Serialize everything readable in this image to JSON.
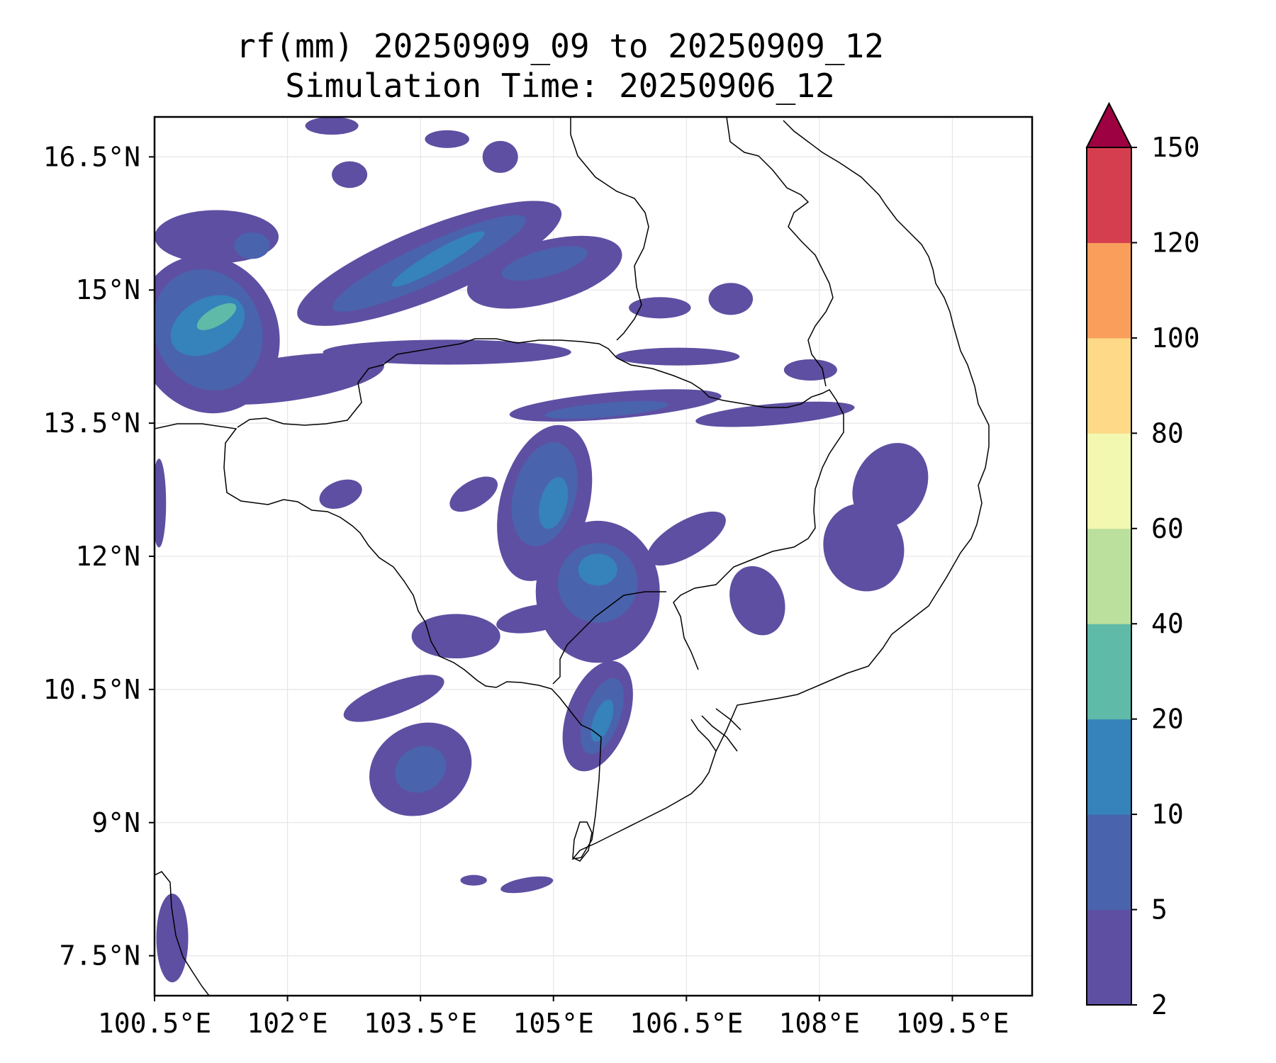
{
  "title": {
    "line1": "rf(mm) 20250909_09 to 20250909_12",
    "line2": "Simulation Time: 20250906_12"
  },
  "map": {
    "lon_labels": [
      "100.5°E",
      "102°E",
      "103.5°E",
      "105°E",
      "106.5°E",
      "108°E",
      "109.5°E"
    ],
    "lat_labels": [
      "16.5°N",
      "15°N",
      "13.5°N",
      "12°N",
      "10.5°N",
      "9°N",
      "7.5°N"
    ],
    "lon_values": [
      100.5,
      102,
      103.5,
      105,
      106.5,
      108,
      109.5
    ],
    "lat_values": [
      16.5,
      15,
      13.5,
      12,
      10.5,
      9,
      7.5
    ],
    "lon_range": [
      100.5,
      110.4
    ],
    "lat_range": [
      7.05,
      16.95
    ],
    "gridlines": true
  },
  "colorbar": {
    "levels": [
      "2",
      "5",
      "10",
      "20",
      "40",
      "60",
      "80",
      "100",
      "120",
      "150"
    ],
    "colors": [
      "#5e4fa2",
      "#4a63ad",
      "#3682ba",
      "#5fbaa8",
      "#bbe09e",
      "#f2f8b0",
      "#fdd988",
      "#f99e5b",
      "#d53e4f"
    ],
    "extend_color": "#9e0142",
    "extend": "max"
  },
  "rain_regions": [
    {
      "level": 0,
      "lon": 101.1,
      "lat": 14.5,
      "rx": 0.8,
      "ry": 0.9,
      "rot": -20
    },
    {
      "level": 1,
      "lon": 101.1,
      "lat": 14.55,
      "rx": 0.6,
      "ry": 0.7,
      "rot": -25
    },
    {
      "level": 2,
      "lon": 101.1,
      "lat": 14.6,
      "rx": 0.45,
      "ry": 0.3,
      "rot": -30
    },
    {
      "level": 3,
      "lon": 101.2,
      "lat": 14.7,
      "rx": 0.25,
      "ry": 0.1,
      "rot": -30
    },
    {
      "level": 0,
      "lon": 101.2,
      "lat": 15.6,
      "rx": 0.7,
      "ry": 0.3,
      "rot": 0
    },
    {
      "level": 1,
      "lon": 101.6,
      "lat": 15.5,
      "rx": 0.2,
      "ry": 0.15,
      "rot": 0
    },
    {
      "level": 0,
      "lon": 102.0,
      "lat": 14.0,
      "rx": 1.1,
      "ry": 0.25,
      "rot": -8
    },
    {
      "level": 0,
      "lon": 103.6,
      "lat": 15.3,
      "rx": 1.6,
      "ry": 0.4,
      "rot": -22
    },
    {
      "level": 1,
      "lon": 103.6,
      "lat": 15.3,
      "rx": 1.2,
      "ry": 0.22,
      "rot": -25
    },
    {
      "level": 2,
      "lon": 103.7,
      "lat": 15.35,
      "rx": 0.6,
      "ry": 0.1,
      "rot": -30
    },
    {
      "level": 0,
      "lon": 104.9,
      "lat": 15.2,
      "rx": 0.9,
      "ry": 0.35,
      "rot": -15
    },
    {
      "level": 1,
      "lon": 104.9,
      "lat": 15.3,
      "rx": 0.5,
      "ry": 0.15,
      "rot": -15
    },
    {
      "level": 0,
      "lon": 102.7,
      "lat": 16.3,
      "rx": 0.2,
      "ry": 0.15,
      "rot": 0
    },
    {
      "level": 0,
      "lon": 102.5,
      "lat": 16.85,
      "rx": 0.3,
      "ry": 0.1,
      "rot": 0
    },
    {
      "level": 0,
      "lon": 103.8,
      "lat": 14.3,
      "rx": 1.4,
      "ry": 0.14,
      "rot": 0
    },
    {
      "level": 0,
      "lon": 105.7,
      "lat": 13.7,
      "rx": 1.2,
      "ry": 0.15,
      "rot": -5
    },
    {
      "level": 1,
      "lon": 105.6,
      "lat": 13.65,
      "rx": 0.7,
      "ry": 0.08,
      "rot": -5
    },
    {
      "level": 0,
      "lon": 107.5,
      "lat": 13.6,
      "rx": 0.9,
      "ry": 0.12,
      "rot": -5
    },
    {
      "level": 0,
      "lon": 106.4,
      "lat": 14.25,
      "rx": 0.7,
      "ry": 0.1,
      "rot": 0
    },
    {
      "level": 0,
      "lon": 104.9,
      "lat": 12.6,
      "rx": 0.5,
      "ry": 0.9,
      "rot": 15
    },
    {
      "level": 1,
      "lon": 104.9,
      "lat": 12.7,
      "rx": 0.35,
      "ry": 0.6,
      "rot": 15
    },
    {
      "level": 2,
      "lon": 105.0,
      "lat": 12.6,
      "rx": 0.15,
      "ry": 0.3,
      "rot": 15
    },
    {
      "level": 0,
      "lon": 105.5,
      "lat": 11.6,
      "rx": 0.7,
      "ry": 0.8,
      "rot": 0
    },
    {
      "level": 1,
      "lon": 105.5,
      "lat": 11.7,
      "rx": 0.45,
      "ry": 0.45,
      "rot": 0
    },
    {
      "level": 2,
      "lon": 105.5,
      "lat": 11.85,
      "rx": 0.22,
      "ry": 0.18,
      "rot": 0
    },
    {
      "level": 0,
      "lon": 105.5,
      "lat": 10.2,
      "rx": 0.35,
      "ry": 0.65,
      "rot": 20
    },
    {
      "level": 1,
      "lon": 105.55,
      "lat": 10.2,
      "rx": 0.2,
      "ry": 0.45,
      "rot": 20
    },
    {
      "level": 2,
      "lon": 105.55,
      "lat": 10.15,
      "rx": 0.1,
      "ry": 0.25,
      "rot": 20
    },
    {
      "level": 0,
      "lon": 103.5,
      "lat": 9.6,
      "rx": 0.6,
      "ry": 0.5,
      "rot": -30
    },
    {
      "level": 1,
      "lon": 103.5,
      "lat": 9.6,
      "rx": 0.3,
      "ry": 0.25,
      "rot": -30
    },
    {
      "level": 0,
      "lon": 103.2,
      "lat": 10.4,
      "rx": 0.6,
      "ry": 0.18,
      "rot": -20
    },
    {
      "level": 0,
      "lon": 103.9,
      "lat": 11.1,
      "rx": 0.5,
      "ry": 0.25,
      "rot": 0
    },
    {
      "level": 0,
      "lon": 104.8,
      "lat": 11.3,
      "rx": 0.45,
      "ry": 0.15,
      "rot": -10
    },
    {
      "level": 0,
      "lon": 104.1,
      "lat": 12.7,
      "rx": 0.3,
      "ry": 0.15,
      "rot": -30
    },
    {
      "level": 0,
      "lon": 102.6,
      "lat": 12.7,
      "rx": 0.25,
      "ry": 0.15,
      "rot": -20
    },
    {
      "level": 0,
      "lon": 108.8,
      "lat": 12.8,
      "rx": 0.4,
      "ry": 0.5,
      "rot": 30
    },
    {
      "level": 0,
      "lon": 108.5,
      "lat": 12.1,
      "rx": 0.45,
      "ry": 0.5,
      "rot": -20
    },
    {
      "level": 0,
      "lon": 107.3,
      "lat": 11.5,
      "rx": 0.3,
      "ry": 0.4,
      "rot": -20
    },
    {
      "level": 0,
      "lon": 106.5,
      "lat": 12.2,
      "rx": 0.5,
      "ry": 0.2,
      "rot": -30
    },
    {
      "level": 0,
      "lon": 107.9,
      "lat": 14.1,
      "rx": 0.3,
      "ry": 0.12,
      "rot": 0
    },
    {
      "level": 0,
      "lon": 107.0,
      "lat": 14.9,
      "rx": 0.25,
      "ry": 0.18,
      "rot": 0
    },
    {
      "level": 0,
      "lon": 106.2,
      "lat": 14.8,
      "rx": 0.35,
      "ry": 0.12,
      "rot": 0
    },
    {
      "level": 0,
      "lon": 104.7,
      "lat": 8.3,
      "rx": 0.3,
      "ry": 0.08,
      "rot": -10
    },
    {
      "level": 0,
      "lon": 104.1,
      "lat": 8.35,
      "rx": 0.15,
      "ry": 0.06,
      "rot": 0
    },
    {
      "level": 0,
      "lon": 100.7,
      "lat": 7.7,
      "rx": 0.18,
      "ry": 0.5,
      "rot": 0
    },
    {
      "level": 0,
      "lon": 100.55,
      "lat": 12.6,
      "rx": 0.08,
      "ry": 0.5,
      "rot": 0
    },
    {
      "level": 0,
      "lon": 103.8,
      "lat": 16.7,
      "rx": 0.25,
      "ry": 0.1,
      "rot": 0
    },
    {
      "level": 0,
      "lon": 104.4,
      "lat": 16.5,
      "rx": 0.2,
      "ry": 0.18,
      "rot": 0
    }
  ]
}
